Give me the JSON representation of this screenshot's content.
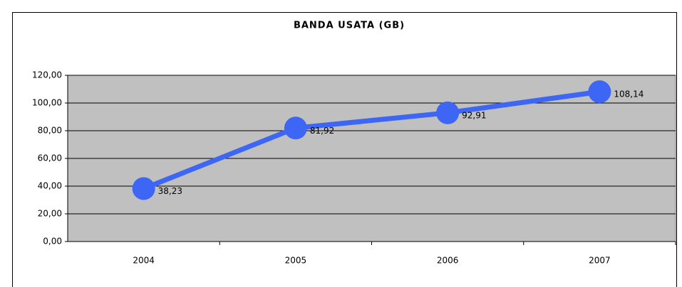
{
  "chart_data": {
    "type": "line",
    "title": "BANDA USATA (GB)",
    "categories": [
      "2004",
      "2005",
      "2006",
      "2007"
    ],
    "series": [
      {
        "name": "BANDA USATA (GB)",
        "color": "#3d66f5",
        "values": [
          38.23,
          81.92,
          92.91,
          108.14
        ],
        "value_labels": [
          "38,23",
          "81,92",
          "92,91",
          "108,14"
        ]
      }
    ],
    "ylim": [
      0,
      120
    ],
    "yticks": [
      {
        "value": 0,
        "label": "0,00"
      },
      {
        "value": 20,
        "label": "20,00"
      },
      {
        "value": 40,
        "label": "40,00"
      },
      {
        "value": 60,
        "label": "60,00"
      },
      {
        "value": 80,
        "label": "80,00"
      },
      {
        "value": 100,
        "label": "100,00"
      },
      {
        "value": 120,
        "label": "120,00"
      }
    ],
    "grid": true,
    "plot_background": "#c0c0c0"
  }
}
